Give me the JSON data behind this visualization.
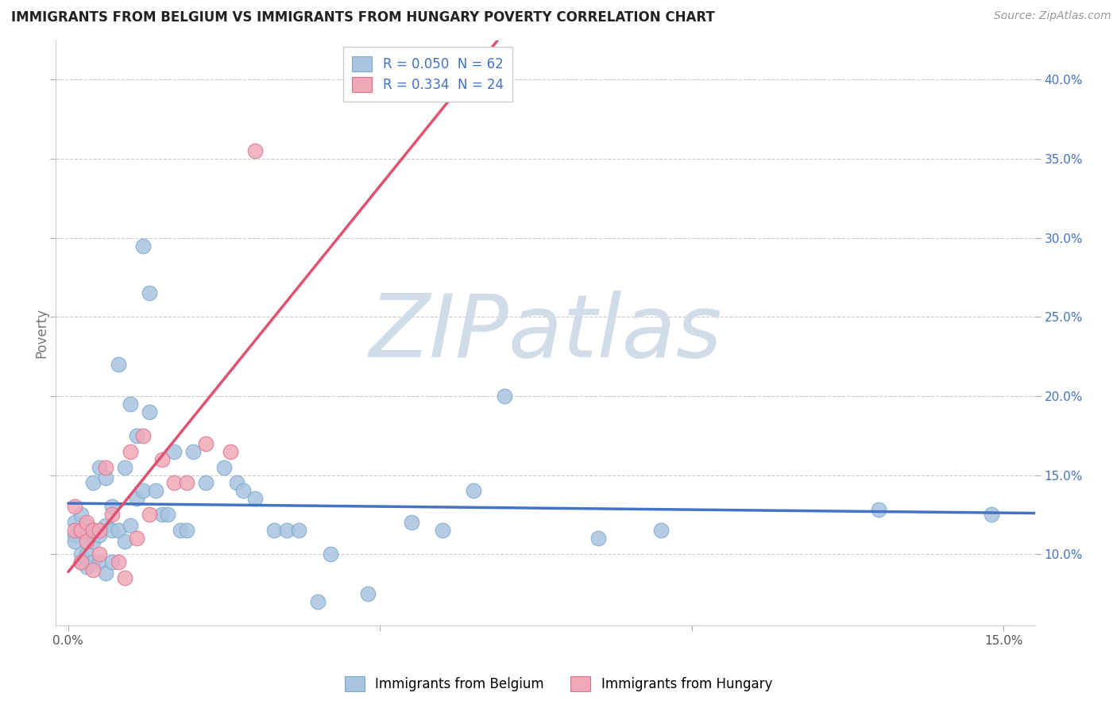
{
  "title": "IMMIGRANTS FROM BELGIUM VS IMMIGRANTS FROM HUNGARY POVERTY CORRELATION CHART",
  "source_text": "Source: ZipAtlas.com",
  "xlabel": "",
  "ylabel": "Poverty",
  "xlim": [
    -0.002,
    0.155
  ],
  "ylim": [
    0.055,
    0.425
  ],
  "xticks": [
    0.0,
    0.05,
    0.1,
    0.15
  ],
  "xtick_labels": [
    "0.0%",
    "",
    "",
    "15.0%"
  ],
  "yticks_right": [
    0.1,
    0.15,
    0.2,
    0.25,
    0.3,
    0.35,
    0.4
  ],
  "ytick_labels_right": [
    "10.0%",
    "15.0%",
    "20.0%",
    "25.0%",
    "30.0%",
    "35.0%",
    "40.0%"
  ],
  "legend_R_belgium": "R = 0.050",
  "legend_N_belgium": "N = 62",
  "legend_R_hungary": "R = 0.334",
  "legend_N_hungary": "N = 24",
  "belgium_color": "#a8c4e0",
  "hungary_color": "#f0a8b8",
  "belgium_edge_color": "#7aaac8",
  "hungary_edge_color": "#e07090",
  "trend_belgium_color": "#4472c4",
  "trend_hungary_color": "#e05070",
  "watermark": "ZIPatlas",
  "watermark_color": "#d0dde8",
  "figsize": [
    14.06,
    8.92
  ],
  "dpi": 100,
  "bel_x": [
    0.001,
    0.001,
    0.001,
    0.002,
    0.002,
    0.002,
    0.002,
    0.003,
    0.003,
    0.003,
    0.003,
    0.004,
    0.004,
    0.004,
    0.004,
    0.005,
    0.005,
    0.005,
    0.006,
    0.006,
    0.006,
    0.007,
    0.007,
    0.007,
    0.008,
    0.008,
    0.009,
    0.009,
    0.01,
    0.01,
    0.011,
    0.011,
    0.012,
    0.012,
    0.013,
    0.013,
    0.014,
    0.015,
    0.016,
    0.017,
    0.018,
    0.019,
    0.02,
    0.022,
    0.025,
    0.027,
    0.028,
    0.03,
    0.033,
    0.035,
    0.037,
    0.04,
    0.042,
    0.048,
    0.055,
    0.06,
    0.065,
    0.07,
    0.085,
    0.095,
    0.13,
    0.148
  ],
  "bel_y": [
    0.12,
    0.112,
    0.108,
    0.125,
    0.115,
    0.1,
    0.095,
    0.118,
    0.108,
    0.1,
    0.092,
    0.145,
    0.115,
    0.108,
    0.095,
    0.155,
    0.112,
    0.095,
    0.148,
    0.118,
    0.088,
    0.13,
    0.115,
    0.095,
    0.22,
    0.115,
    0.155,
    0.108,
    0.195,
    0.118,
    0.175,
    0.135,
    0.295,
    0.14,
    0.265,
    0.19,
    0.14,
    0.125,
    0.125,
    0.165,
    0.115,
    0.115,
    0.165,
    0.145,
    0.155,
    0.145,
    0.14,
    0.135,
    0.115,
    0.115,
    0.115,
    0.07,
    0.1,
    0.075,
    0.12,
    0.115,
    0.14,
    0.2,
    0.11,
    0.115,
    0.128,
    0.125
  ],
  "hun_x": [
    0.001,
    0.001,
    0.002,
    0.002,
    0.003,
    0.003,
    0.004,
    0.004,
    0.005,
    0.005,
    0.006,
    0.007,
    0.008,
    0.009,
    0.01,
    0.011,
    0.012,
    0.013,
    0.015,
    0.017,
    0.019,
    0.022,
    0.026,
    0.03
  ],
  "hun_y": [
    0.13,
    0.115,
    0.115,
    0.095,
    0.12,
    0.108,
    0.115,
    0.09,
    0.115,
    0.1,
    0.155,
    0.125,
    0.095,
    0.085,
    0.165,
    0.11,
    0.175,
    0.125,
    0.16,
    0.145,
    0.145,
    0.17,
    0.165,
    0.355
  ]
}
